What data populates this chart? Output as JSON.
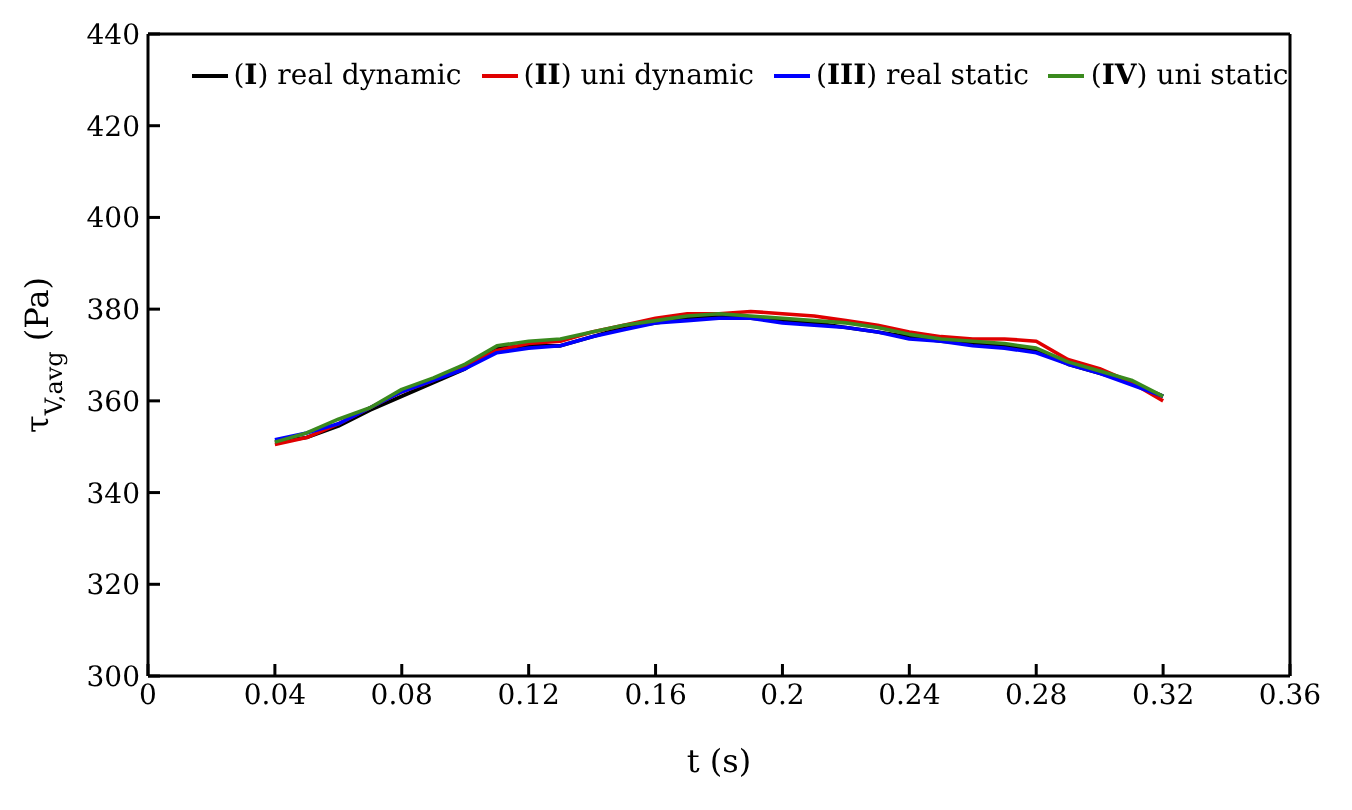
{
  "chart_data": {
    "type": "line",
    "xlabel": "t (s)",
    "ylabel": "τ$_{V,avg}$ (Pa)",
    "x": [
      0.04,
      0.05,
      0.06,
      0.07,
      0.08,
      0.09,
      0.1,
      0.11,
      0.12,
      0.13,
      0.14,
      0.15,
      0.16,
      0.17,
      0.18,
      0.19,
      0.2,
      0.21,
      0.22,
      0.23,
      0.24,
      0.25,
      0.26,
      0.27,
      0.28,
      0.29,
      0.3,
      0.31,
      0.32
    ],
    "series": [
      {
        "name": "(I) real dynamic",
        "color": "#000000",
        "values": [
          351,
          352,
          354.5,
          358,
          361,
          364,
          367,
          371.5,
          372,
          372,
          374,
          376,
          377,
          378,
          378.5,
          378,
          377.5,
          377,
          376,
          375,
          374,
          373,
          372.5,
          372,
          371,
          368,
          366,
          364,
          361
        ]
      },
      {
        "name": "(II) uni dynamic",
        "color": "#e00000",
        "values": [
          350.5,
          352,
          355,
          358.5,
          362,
          364.5,
          367.5,
          371,
          372.5,
          373,
          375,
          376.5,
          378,
          379,
          379,
          379.5,
          379,
          378.5,
          377.5,
          376.5,
          375,
          374,
          373.5,
          373.5,
          373,
          369,
          367,
          364,
          360
        ]
      },
      {
        "name": "(III) real static",
        "color": "#0000ff",
        "values": [
          351.5,
          353,
          355,
          358.5,
          362,
          364.5,
          367,
          370.5,
          371.5,
          372,
          374,
          375.5,
          377,
          377.5,
          378,
          378,
          377,
          376.5,
          376,
          375,
          373.5,
          373,
          372,
          371.5,
          370.5,
          368,
          366,
          363.5,
          361
        ]
      },
      {
        "name": "(IV) uni static",
        "color": "#3a8a1e",
        "values": [
          351,
          353,
          356,
          358.5,
          362.5,
          365,
          368,
          372,
          373,
          373.5,
          375,
          376.5,
          377.5,
          378.5,
          379,
          378.5,
          378,
          377.5,
          377,
          376,
          374.5,
          373.5,
          373,
          372.5,
          371.5,
          368.5,
          366.5,
          364.5,
          361
        ]
      }
    ],
    "xlim": [
      0,
      0.36
    ],
    "xticks": [
      0,
      0.04,
      0.08,
      0.12,
      0.16,
      0.2,
      0.24,
      0.28,
      0.32,
      0.36
    ],
    "ylim": [
      300,
      440
    ],
    "yticks": [
      300,
      320,
      340,
      360,
      380,
      400,
      420,
      440
    ],
    "grid": false,
    "legend": "top",
    "marker": "none",
    "line_style": "solid"
  }
}
